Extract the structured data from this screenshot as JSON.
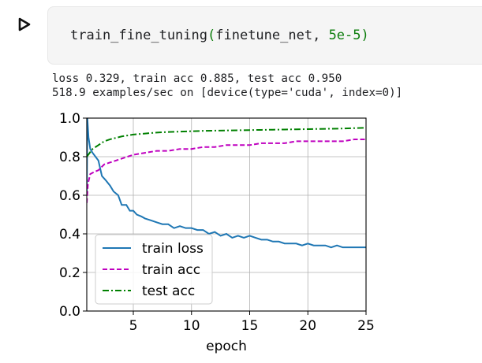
{
  "cell": {
    "function_name": "train_fine_tuning",
    "open_paren": "(",
    "arg1": "finetune_net",
    "comma": ", ",
    "arg2": "5e-5",
    "close_paren": ")"
  },
  "output": {
    "line1": "loss 0.329, train acc 0.885, test acc 0.950",
    "line2": "518.9 examples/sec on [device(type='cuda', index=0)]"
  },
  "icons": {
    "run": "play-triangle-icon"
  },
  "chart_data": {
    "type": "line",
    "xlabel": "epoch",
    "ylabel": "",
    "xlim": [
      1,
      25
    ],
    "ylim": [
      0.0,
      1.0
    ],
    "xticks": [
      "5",
      "10",
      "15",
      "20",
      "25"
    ],
    "yticks": [
      "0.0",
      "0.2",
      "0.4",
      "0.6",
      "0.8",
      "1.0"
    ],
    "grid": true,
    "legend_position": "lower-left",
    "series": [
      {
        "name": "train loss",
        "color": "#1f77b4",
        "style": "solid",
        "x": [
          1.0,
          1.05,
          1.15,
          1.3,
          1.5,
          1.75,
          2.0,
          2.3,
          2.6,
          3.0,
          3.3,
          3.7,
          4.0,
          4.4,
          4.7,
          5.0,
          5.3,
          5.7,
          6.0,
          6.5,
          7.0,
          7.5,
          8.0,
          8.5,
          9.0,
          9.5,
          10.0,
          10.5,
          11.0,
          11.5,
          12.0,
          12.5,
          13.0,
          13.5,
          14.0,
          14.5,
          15.0,
          15.5,
          16.0,
          16.5,
          17.0,
          17.5,
          18.0,
          18.5,
          19.0,
          19.5,
          20.0,
          20.5,
          21.0,
          21.5,
          22.0,
          22.5,
          23.0,
          23.5,
          24.0,
          24.5,
          25.0
        ],
        "y": [
          0.6,
          1.0,
          0.9,
          0.84,
          0.82,
          0.8,
          0.78,
          0.7,
          0.68,
          0.65,
          0.62,
          0.6,
          0.55,
          0.55,
          0.52,
          0.52,
          0.5,
          0.49,
          0.48,
          0.47,
          0.46,
          0.45,
          0.45,
          0.43,
          0.44,
          0.43,
          0.43,
          0.42,
          0.42,
          0.4,
          0.41,
          0.39,
          0.4,
          0.38,
          0.39,
          0.38,
          0.39,
          0.38,
          0.37,
          0.37,
          0.36,
          0.36,
          0.35,
          0.35,
          0.35,
          0.34,
          0.35,
          0.34,
          0.34,
          0.34,
          0.33,
          0.34,
          0.33,
          0.33,
          0.33,
          0.33,
          0.33
        ]
      },
      {
        "name": "train acc",
        "color": "#bf00bf",
        "style": "dashed",
        "x": [
          1.0,
          1.1,
          1.3,
          1.6,
          2.0,
          2.5,
          3.0,
          3.5,
          4.0,
          4.5,
          5.0,
          6.0,
          7.0,
          8.0,
          9.0,
          10.0,
          11.0,
          12.0,
          13.0,
          14.0,
          15.0,
          16.0,
          17.0,
          18.0,
          19.0,
          20.0,
          21.0,
          22.0,
          23.0,
          24.0,
          25.0
        ],
        "y": [
          0.56,
          0.66,
          0.71,
          0.72,
          0.73,
          0.76,
          0.77,
          0.78,
          0.79,
          0.8,
          0.81,
          0.82,
          0.83,
          0.83,
          0.84,
          0.84,
          0.85,
          0.85,
          0.86,
          0.86,
          0.86,
          0.87,
          0.87,
          0.87,
          0.88,
          0.88,
          0.88,
          0.88,
          0.88,
          0.89,
          0.89
        ]
      },
      {
        "name": "test acc",
        "color": "#008000",
        "style": "dashdot",
        "x": [
          1.0,
          1.5,
          2.0,
          2.5,
          3.0,
          4.0,
          5.0,
          6.0,
          7.0,
          8.0,
          9.0,
          10.0,
          11.0,
          12.0,
          13.0,
          14.0,
          15.0,
          16.0,
          17.0,
          18.0,
          19.0,
          20.0,
          21.0,
          22.0,
          23.0,
          24.0,
          25.0
        ],
        "y": [
          0.8,
          0.84,
          0.86,
          0.88,
          0.89,
          0.905,
          0.915,
          0.92,
          0.925,
          0.928,
          0.93,
          0.932,
          0.934,
          0.935,
          0.936,
          0.937,
          0.938,
          0.939,
          0.94,
          0.941,
          0.942,
          0.943,
          0.944,
          0.945,
          0.946,
          0.948,
          0.95
        ]
      }
    ]
  }
}
